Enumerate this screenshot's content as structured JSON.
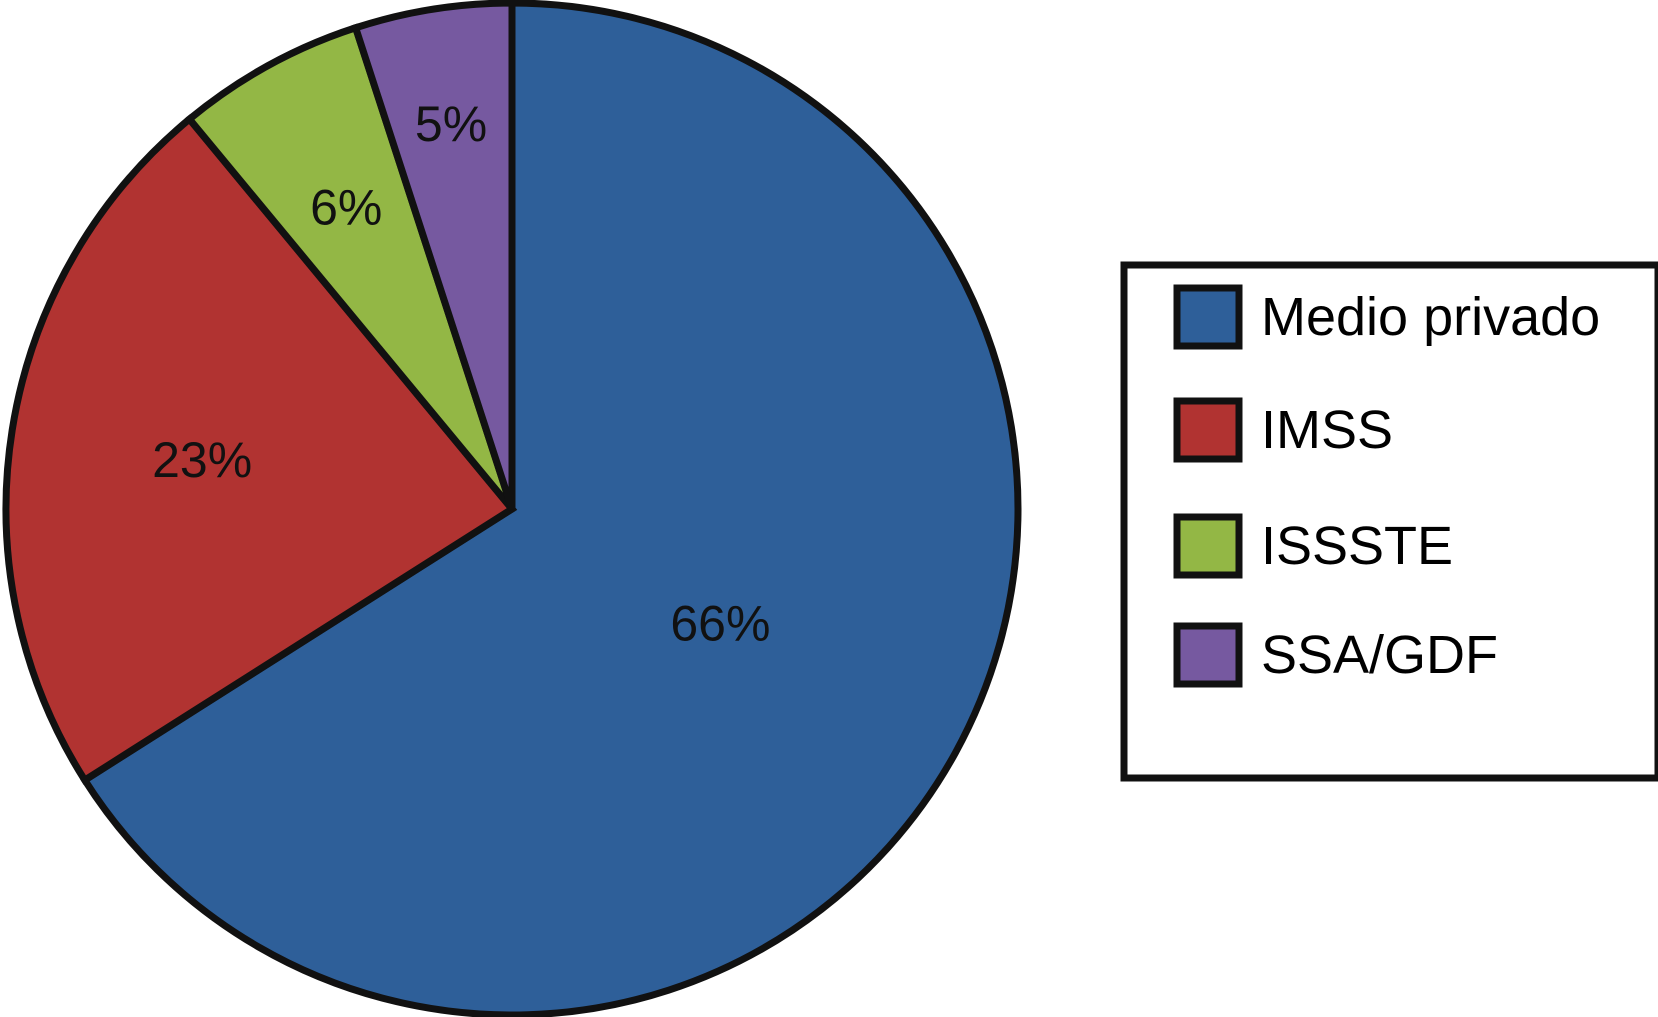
{
  "chart_data": {
    "type": "pie",
    "categories": [
      "Medio privado",
      "IMSS",
      "ISSSTE",
      "SSA/GDF"
    ],
    "values": [
      66,
      23,
      6,
      5
    ],
    "data_labels": [
      "66%",
      "23%",
      "6%",
      "5%"
    ],
    "colors": [
      "#2e5f99",
      "#b13331",
      "#93b745",
      "#7659a0"
    ],
    "legend_position": "right",
    "start_angle": "12 o'clock",
    "direction": "clockwise"
  }
}
